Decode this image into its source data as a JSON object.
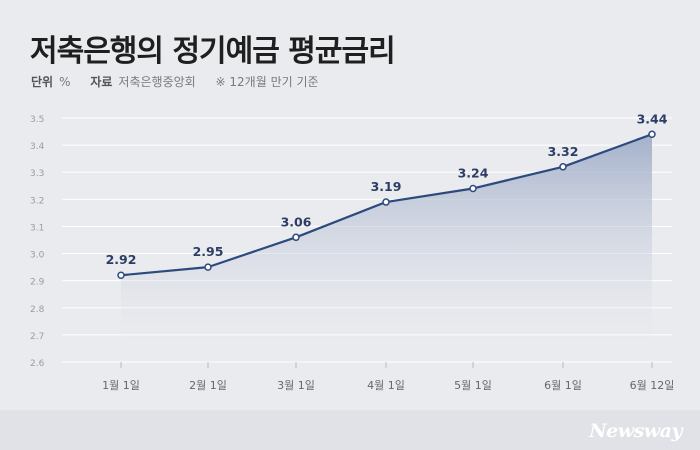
{
  "title": "저축은행의 정기예금 평균금리",
  "meta": {
    "unit_label": "단위",
    "unit_value": "%",
    "source_label": "자료",
    "source_value": "저축은행중앙회",
    "note": "※ 12개월 만기 기준"
  },
  "logo": "Newsway",
  "colors": {
    "line": "#2c4a7e",
    "fill_top": "#9fadc8",
    "background": "#eaebef",
    "grid": "#ffffff"
  },
  "chart_data": {
    "type": "area",
    "categories": [
      "1월 1일",
      "2월 1일",
      "3월 1일",
      "4월 1일",
      "5월 1일",
      "6월 1일",
      "6월 12일"
    ],
    "values": [
      2.92,
      2.95,
      3.06,
      3.19,
      3.24,
      3.32,
      3.44
    ],
    "value_labels": [
      "2.92",
      "2.95",
      "3.06",
      "3.19",
      "3.24",
      "3.32",
      "3.44"
    ],
    "ylim": [
      2.6,
      3.5
    ],
    "yticks": [
      "2.6",
      "2.7",
      "2.8",
      "2.9",
      "3.0",
      "3.1",
      "3.2",
      "3.3",
      "3.4",
      "3.5"
    ],
    "grid": true
  }
}
